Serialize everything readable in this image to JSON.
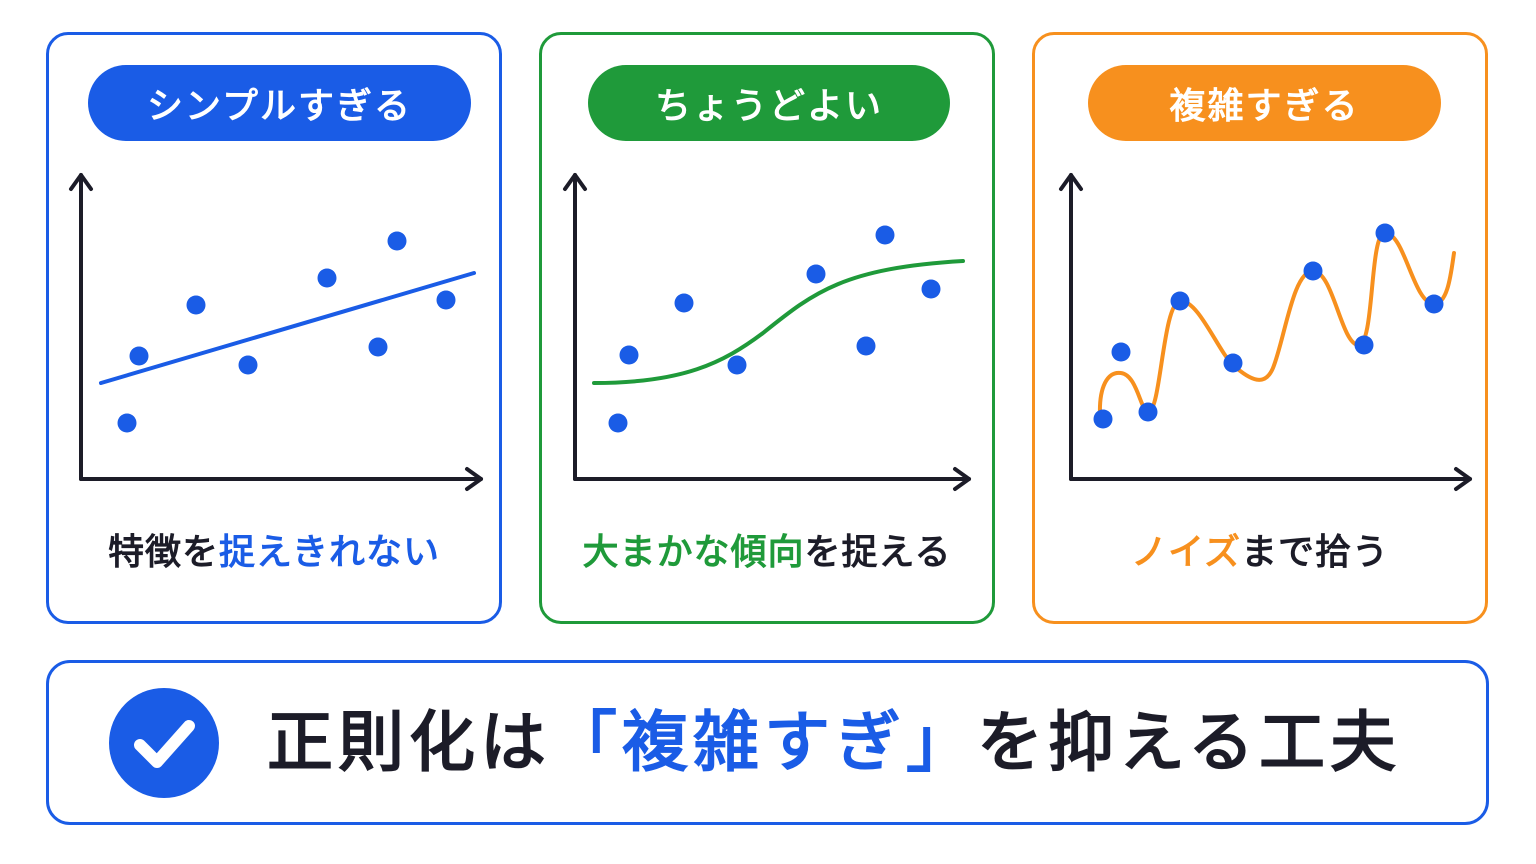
{
  "panels": [
    {
      "id": "simple",
      "title": "シンプルすぎる",
      "color": "#1a5ce6",
      "caption_parts": [
        "特徴を",
        "捉えきれない"
      ],
      "points": [
        [
          124,
          420
        ],
        [
          136,
          353
        ],
        [
          193,
          302
        ],
        [
          245,
          362
        ],
        [
          324,
          275
        ],
        [
          375,
          344
        ],
        [
          394,
          238
        ],
        [
          443,
          297
        ]
      ],
      "curve": "line"
    },
    {
      "id": "just-right",
      "title": "ちょうどよい",
      "color": "#1f9a3a",
      "caption_parts": [
        "大まかな傾向",
        "を捉える"
      ],
      "points": [
        [
          615,
          420
        ],
        [
          626,
          352
        ],
        [
          681,
          300
        ],
        [
          734,
          362
        ],
        [
          813,
          271
        ],
        [
          863,
          343
        ],
        [
          882,
          232
        ],
        [
          928,
          286
        ]
      ],
      "curve": "smooth"
    },
    {
      "id": "complex",
      "title": "複雑すぎる",
      "color": "#f7901e",
      "caption_parts": [
        "ノイズ",
        "まで拾う"
      ],
      "points": [
        [
          1100,
          416
        ],
        [
          1118,
          349
        ],
        [
          1145,
          409
        ],
        [
          1177,
          298
        ],
        [
          1230,
          360
        ],
        [
          1310,
          268
        ],
        [
          1361,
          342
        ],
        [
          1382,
          230
        ],
        [
          1431,
          301
        ]
      ],
      "curve": "wiggly"
    }
  ],
  "banner": {
    "text_parts": [
      "正則化は",
      "「複雑すぎ」",
      "を抑える工夫"
    ],
    "icon": "check-circle-icon"
  }
}
